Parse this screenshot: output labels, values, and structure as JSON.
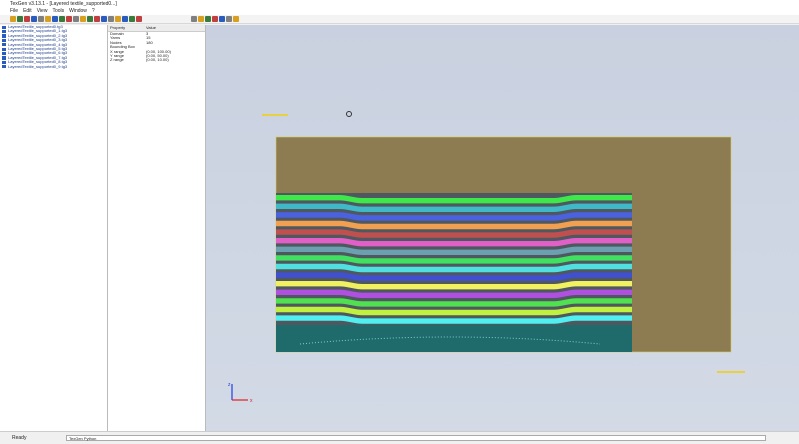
{
  "window": {
    "title": "TexGen v3.13.1 - [Layered textile_supported0...]",
    "menu": [
      "File",
      "Edit",
      "View",
      "Tools",
      "Window",
      "?"
    ]
  },
  "files": [
    "LayeredTextile_supported0.tg3",
    "LayeredTextile_supported0_1.tg3",
    "LayeredTextile_supported0_2.tg3",
    "LayeredTextile_supported0_3.tg3",
    "LayeredTextile_supported0_4.tg3",
    "LayeredTextile_supported0_5.tg3",
    "LayeredTextile_supported0_6.tg3",
    "LayeredTextile_supported0_7.tg3",
    "LayeredTextile_supported0_8.tg3",
    "LayeredTextile_supported0_9.tg3"
  ],
  "properties": {
    "header": [
      "Property",
      "Value"
    ],
    "rows": [
      [
        "Domain",
        "3"
      ],
      [
        "Yarns",
        "15"
      ],
      [
        "Nodes",
        "180"
      ],
      [
        "Bounding Box",
        ""
      ],
      [
        "X range",
        "(0.00, 100.00)"
      ],
      [
        "Y range",
        "(0.00, 50.00)"
      ],
      [
        "Z range",
        "(0.00, 10.00)"
      ]
    ]
  },
  "view": {
    "axis_x": "x",
    "axis_z": "z"
  },
  "status": {
    "left": "Ready",
    "box": "TexGen Python"
  }
}
